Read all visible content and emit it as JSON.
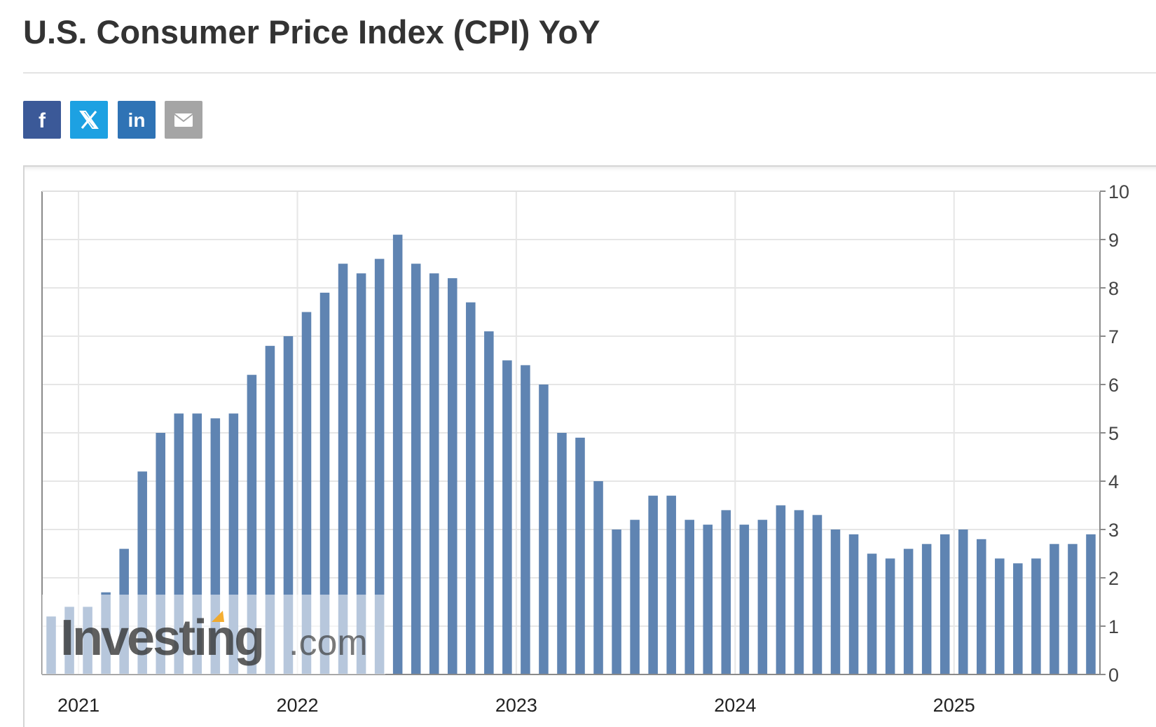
{
  "page": {
    "title": "U.S. Consumer Price Index (CPI) YoY"
  },
  "share": [
    {
      "name": "facebook",
      "color": "#3b5998",
      "glyph": "f"
    },
    {
      "name": "x-twitter",
      "color": "#1da1e2",
      "glyph": "𝕏"
    },
    {
      "name": "linkedin",
      "color": "#2f73b5",
      "glyph": "in"
    },
    {
      "name": "email",
      "color": "#a5a5a5",
      "glyph": "envelope"
    }
  ],
  "watermark": {
    "brand": "Investing",
    "suffix": ".com",
    "accent": "#f4a51c"
  },
  "chart_data": {
    "type": "bar",
    "title": "",
    "xlabel": "",
    "ylabel": "",
    "ylim": [
      0,
      10
    ],
    "y_ticks": [
      "0",
      "1",
      "2",
      "3",
      "4",
      "5",
      "6",
      "7",
      "8",
      "9",
      "10"
    ],
    "y_axis_side": "right",
    "grid": true,
    "bar_color": "#5f84b2",
    "x_ticks": [
      {
        "label": "2021",
        "date": "2021-01"
      },
      {
        "label": "2022",
        "date": "2022-01"
      },
      {
        "label": "2023",
        "date": "2023-01"
      },
      {
        "label": "2024",
        "date": "2024-01"
      },
      {
        "label": "2025",
        "date": "2025-01"
      }
    ],
    "categories": [
      "2020-11",
      "2020-12",
      "2021-01",
      "2021-02",
      "2021-03",
      "2021-04",
      "2021-05",
      "2021-06",
      "2021-07",
      "2021-08",
      "2021-09",
      "2021-10",
      "2021-11",
      "2021-12",
      "2022-01",
      "2022-02",
      "2022-03",
      "2022-04",
      "2022-05",
      "2022-06",
      "2022-07",
      "2022-08",
      "2022-09",
      "2022-10",
      "2022-11",
      "2022-12",
      "2023-01",
      "2023-02",
      "2023-03",
      "2023-04",
      "2023-05",
      "2023-06",
      "2023-07",
      "2023-08",
      "2023-09",
      "2023-10",
      "2023-11",
      "2023-12",
      "2024-01",
      "2024-02",
      "2024-03",
      "2024-04",
      "2024-05",
      "2024-06",
      "2024-07",
      "2024-08",
      "2024-09",
      "2024-10",
      "2024-11",
      "2024-12",
      "2025-01",
      "2025-02",
      "2025-03",
      "2025-04",
      "2025-05",
      "2025-06",
      "2025-07",
      "2025-08"
    ],
    "values": [
      1.2,
      1.4,
      1.4,
      1.7,
      2.6,
      4.2,
      5.0,
      5.4,
      5.4,
      5.3,
      5.4,
      6.2,
      6.8,
      7.0,
      7.5,
      7.9,
      8.5,
      8.3,
      8.6,
      9.1,
      8.5,
      8.3,
      8.2,
      7.7,
      7.1,
      6.5,
      6.4,
      6.0,
      5.0,
      4.9,
      4.0,
      3.0,
      3.2,
      3.7,
      3.7,
      3.2,
      3.1,
      3.4,
      3.1,
      3.2,
      3.5,
      3.4,
      3.3,
      3.0,
      2.9,
      2.5,
      2.4,
      2.6,
      2.7,
      2.9,
      3.0,
      2.8,
      2.4,
      2.3,
      2.4,
      2.7,
      2.7,
      2.9
    ]
  }
}
